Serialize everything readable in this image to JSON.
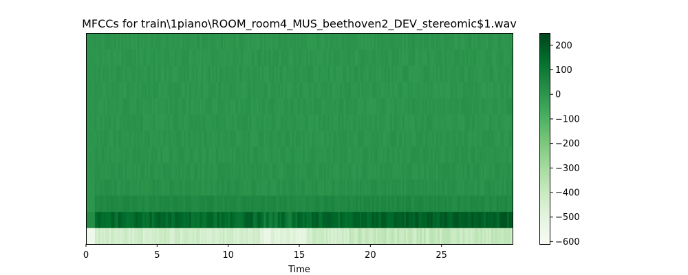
{
  "chart_data": {
    "type": "heatmap",
    "title": "MFCCs for train\\1piano\\ROOM_room4_MUS_beethoven2_DEV_stereomic$1.wav",
    "xlabel": "Time",
    "ylabel": "",
    "xlim": [
      0,
      30
    ],
    "x_ticks": [
      0,
      5,
      10,
      15,
      20,
      25
    ],
    "x_tick_labels": [
      "0",
      "5",
      "10",
      "15",
      "20",
      "25"
    ],
    "y_ticks": [],
    "colormap": "Greens",
    "colorbar": {
      "vmin": -610,
      "vmax": 250,
      "ticks": [
        200,
        100,
        0,
        -100,
        -200,
        -300,
        -400,
        -500,
        -600
      ],
      "tick_labels": [
        "200",
        "100",
        "0",
        "−100",
        "−200",
        "−300",
        "−400",
        "−500",
        "−600"
      ]
    },
    "n_coefficients": 13,
    "coefficient_typical_values": [
      -430,
      150,
      45,
      18,
      12,
      8,
      6,
      5,
      4,
      3,
      3,
      2,
      2
    ],
    "note_row_variation_from_visual": true
  }
}
